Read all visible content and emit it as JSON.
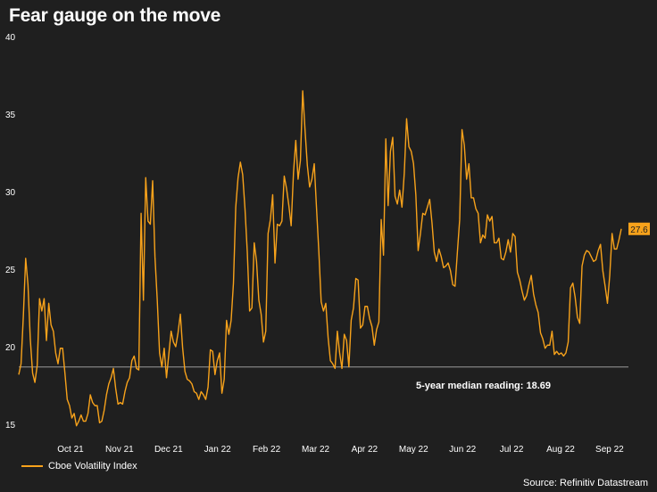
{
  "title": "Fear gauge on the move",
  "source": "Source: Refinitiv Datastream",
  "colors": {
    "background": "#1f1f1f",
    "line": "#f7a21b",
    "median_line": "#9a9a9a",
    "text": "#ffffff"
  },
  "chart_data": {
    "type": "line",
    "title": "Fear gauge on the move",
    "xlabel": "",
    "ylabel": "",
    "ylim": [
      15,
      40
    ],
    "yticks": [
      15,
      20,
      25,
      30,
      35,
      40
    ],
    "x_tick_labels": [
      "Oct 21",
      "Nov 21",
      "Dec 21",
      "Jan 22",
      "Feb 22",
      "Mar 22",
      "Apr 22",
      "May 22",
      "Jun 22",
      "Jul 22",
      "Aug 22",
      "Sep 22"
    ],
    "grid": false,
    "legend_position": "bottom-left",
    "reference_line": {
      "value": 18.69,
      "label": "5-year median reading: 18.69"
    },
    "last_value_label": "27.6",
    "series": [
      {
        "name": "Cboe Volatility Index",
        "values": [
          18.2,
          18.9,
          22.0,
          25.7,
          24.0,
          20.5,
          18.3,
          17.7,
          18.8,
          23.1,
          22.3,
          23.1,
          20.4,
          22.8,
          21.4,
          21.0,
          19.6,
          18.9,
          19.9,
          19.9,
          18.3,
          16.6,
          16.2,
          15.4,
          15.7,
          14.9,
          15.2,
          15.6,
          15.2,
          15.2,
          15.7,
          16.9,
          16.4,
          16.2,
          16.2,
          15.1,
          15.2,
          15.9,
          16.9,
          17.6,
          18.0,
          18.6,
          17.3,
          16.3,
          16.4,
          16.3,
          17.1,
          17.7,
          18.0,
          19.1,
          19.4,
          18.6,
          18.5,
          28.6,
          23.0,
          30.9,
          28.1,
          27.9,
          30.7,
          25.8,
          23.0,
          19.6,
          18.7,
          19.9,
          18.0,
          19.5,
          21.0,
          20.3,
          20.0,
          20.9,
          22.1,
          19.9,
          18.4,
          17.9,
          17.8,
          17.6,
          17.1,
          17.0,
          16.6,
          17.1,
          16.9,
          16.6,
          17.4,
          19.8,
          19.7,
          18.2,
          19.1,
          19.6,
          17.0,
          17.9,
          21.7,
          20.8,
          21.7,
          24.1,
          29.0,
          30.9,
          31.9,
          31.1,
          28.9,
          26.1,
          22.3,
          22.5,
          26.7,
          25.5,
          23.0,
          22.1,
          20.3,
          21.0,
          27.3,
          28.2,
          29.8,
          25.4,
          27.9,
          27.8,
          28.1,
          31.0,
          30.2,
          29.1,
          27.8,
          31.2,
          33.3,
          30.8,
          32.0,
          36.5,
          34.0,
          31.7,
          30.3,
          30.8,
          31.8,
          28.9,
          26.1,
          22.9,
          22.3,
          22.8,
          20.6,
          19.1,
          18.9,
          18.6,
          21.0,
          19.6,
          18.6,
          20.8,
          20.4,
          18.7,
          21.7,
          22.5,
          24.4,
          24.3,
          21.2,
          21.4,
          22.6,
          22.6,
          21.8,
          21.3,
          20.1,
          21.1,
          21.6,
          28.2,
          25.9,
          33.4,
          29.1,
          32.6,
          33.5,
          29.7,
          29.2,
          30.1,
          29.0,
          31.2,
          34.7,
          32.9,
          32.6,
          31.8,
          29.8,
          26.2,
          27.3,
          28.6,
          28.5,
          29.0,
          29.5,
          28.0,
          26.1,
          25.5,
          26.3,
          25.8,
          25.1,
          25.2,
          25.4,
          24.9,
          24.0,
          23.9,
          26.1,
          28.2,
          34.0,
          33.0,
          30.8,
          31.8,
          29.6,
          29.6,
          28.9,
          28.6,
          26.7,
          27.2,
          27.0,
          28.5,
          28.1,
          28.4,
          26.7,
          26.7,
          27.0,
          25.7,
          25.6,
          26.1,
          26.9,
          26.1,
          27.3,
          27.1,
          24.8,
          24.3,
          23.6,
          23.0,
          23.3,
          24.0,
          24.6,
          23.4,
          22.7,
          22.2,
          20.9,
          20.5,
          19.9,
          20.1,
          20.1,
          21.0,
          19.5,
          19.7,
          19.5,
          19.6,
          19.4,
          19.6,
          20.3,
          23.8,
          24.1,
          23.2,
          21.9,
          21.5,
          25.2,
          25.9,
          26.2,
          26.1,
          25.8,
          25.5,
          25.6,
          26.2,
          26.6,
          24.9,
          23.9,
          22.8,
          24.6,
          27.3,
          26.3,
          26.3,
          26.9,
          27.6
        ]
      }
    ]
  }
}
